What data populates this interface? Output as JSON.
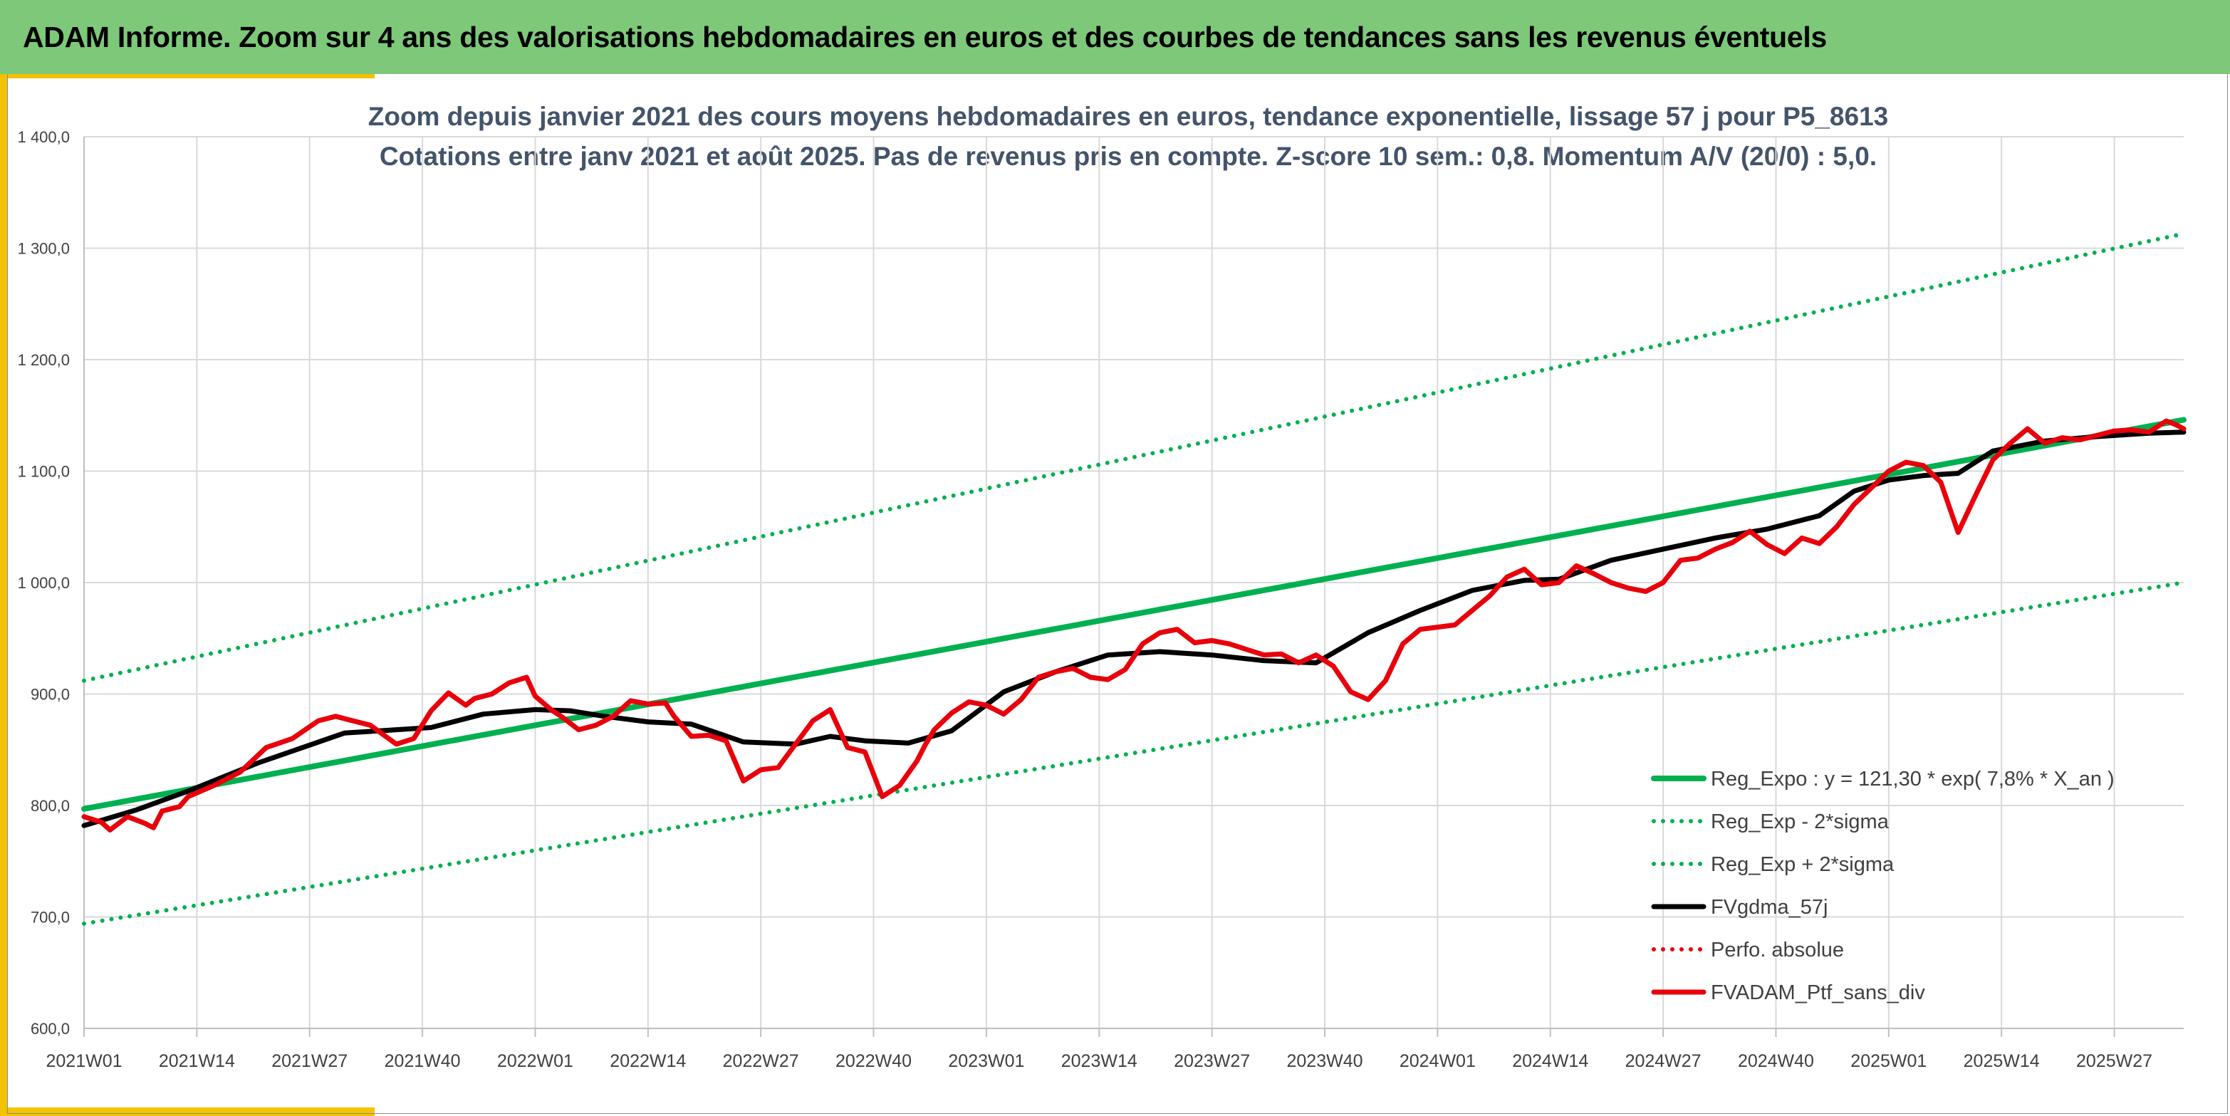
{
  "header": {
    "title": "ADAM Informe. Zoom sur 4 ans des valorisations hebdomadaires en euros et des courbes de tendances sans les revenus éventuels"
  },
  "colors": {
    "header_bg": "#7ec87a",
    "accent": "#f3c300",
    "trend": "#00b050",
    "smooth": "#000000",
    "perf": "#e8000b"
  },
  "chart_data": {
    "type": "line",
    "title": "Zoom depuis janvier 2021 des cours moyens hebdomadaires en euros, tendance exponentielle, lissage 57 j pour P5_8613",
    "subtitle": "Cotations entre janv 2021 et août 2025. Pas de revenus pris en compte. Z-score 10 sem.: 0,8. Momentum A/V (20/0) : 5,0.",
    "xlabel": "",
    "ylabel": "",
    "ylim": [
      600,
      1400
    ],
    "yticks": [
      "600,0",
      "700,0",
      "800,0",
      "900,0",
      "1 000,0",
      "1 100,0",
      "1 200,0",
      "1 300,0",
      "1 400,0"
    ],
    "x_ticks": [
      "2021W01",
      "2021W14",
      "2021W27",
      "2021W40",
      "2022W01",
      "2022W14",
      "2022W27",
      "2022W40",
      "2023W01",
      "2023W14",
      "2023W27",
      "2023W40",
      "2024W01",
      "2024W14",
      "2024W27",
      "2024W40",
      "2025W01",
      "2025W14",
      "2025W27"
    ],
    "grid": true,
    "legend_position": "bottom-right",
    "x_unit": "week index since 2021W01",
    "series": [
      {
        "name": "Reg_Expo : y = 121,30 * exp( 7,8% *  X_an )",
        "style": "solid-thick",
        "color": "#00b050",
        "x": [
          0,
          242
        ],
        "y": [
          797,
          1146
        ]
      },
      {
        "name": "Reg_Exp - 2*sigma",
        "style": "dotted",
        "color": "#00b050",
        "x": [
          0,
          242
        ],
        "y": [
          694,
          1000
        ]
      },
      {
        "name": "Reg_Exp + 2*sigma",
        "style": "dotted",
        "color": "#00b050",
        "x": [
          0,
          242
        ],
        "y": [
          912,
          1313
        ]
      },
      {
        "name": "FVgdma_57j",
        "style": "solid",
        "color": "#000000",
        "x": [
          0,
          6,
          12,
          20,
          30,
          40,
          46,
          52,
          56,
          60,
          65,
          70,
          76,
          82,
          86,
          90,
          95,
          100,
          106,
          112,
          118,
          124,
          130,
          136,
          142,
          148,
          154,
          160,
          166,
          170,
          176,
          182,
          188,
          194,
          200,
          204,
          208,
          212,
          216,
          220,
          226,
          232,
          238,
          242
        ],
        "y": [
          782,
          796,
          813,
          838,
          865,
          870,
          882,
          886,
          885,
          880,
          875,
          873,
          857,
          855,
          862,
          858,
          856,
          867,
          902,
          920,
          935,
          938,
          935,
          930,
          928,
          955,
          975,
          993,
          1002,
          1003,
          1020,
          1030,
          1040,
          1048,
          1060,
          1082,
          1092,
          1096,
          1098,
          1118,
          1127,
          1131,
          1134,
          1135
        ]
      },
      {
        "name": "Perfo. absolue",
        "style": "dotted",
        "color": "#e8000b",
        "x": [],
        "y": []
      },
      {
        "name": "FVADAM_Ptf_sans_div",
        "style": "solid",
        "color": "#e8000b",
        "x": [
          0,
          2,
          3,
          5,
          7,
          8,
          9,
          11,
          12,
          15,
          18,
          21,
          24,
          27,
          29,
          31,
          33,
          36,
          38,
          40,
          42,
          44,
          45,
          47,
          49,
          51,
          52,
          54,
          55,
          57,
          59,
          61,
          63,
          65,
          67,
          68,
          70,
          72,
          74,
          76,
          78,
          80,
          82,
          84,
          86,
          88,
          90,
          92,
          94,
          96,
          97,
          98,
          100,
          102,
          104,
          106,
          108,
          110,
          112,
          114,
          116,
          118,
          120,
          122,
          124,
          126,
          128,
          130,
          132,
          134,
          136,
          138,
          140,
          142,
          144,
          146,
          148,
          150,
          152,
          154,
          156,
          158,
          160,
          162,
          164,
          166,
          168,
          170,
          172,
          174,
          176,
          178,
          180,
          182,
          184,
          186,
          188,
          190,
          192,
          194,
          196,
          198,
          200,
          202,
          204,
          206,
          208,
          210,
          212,
          214,
          216,
          218,
          220,
          222,
          224,
          226,
          228,
          230,
          232,
          234,
          236,
          238,
          240,
          241,
          242
        ],
        "y": [
          790,
          785,
          778,
          790,
          784,
          780,
          795,
          799,
          808,
          818,
          830,
          852,
          860,
          876,
          880,
          876,
          872,
          855,
          860,
          885,
          901,
          890,
          896,
          900,
          910,
          915,
          898,
          885,
          880,
          868,
          872,
          880,
          894,
          891,
          892,
          880,
          862,
          863,
          858,
          822,
          832,
          834,
          855,
          876,
          886,
          852,
          848,
          808,
          818,
          840,
          855,
          868,
          883,
          893,
          890,
          882,
          895,
          915,
          920,
          923,
          915,
          913,
          922,
          945,
          955,
          958,
          946,
          948,
          945,
          940,
          935,
          936,
          928,
          935,
          925,
          902,
          895,
          912,
          945,
          958,
          960,
          962,
          975,
          988,
          1005,
          1012,
          998,
          1000,
          1015,
          1008,
          1000,
          995,
          992,
          1000,
          1020,
          1022,
          1030,
          1036,
          1046,
          1034,
          1026,
          1040,
          1035,
          1050,
          1070,
          1085,
          1100,
          1108,
          1105,
          1090,
          1045,
          1078,
          1110,
          1125,
          1138,
          1125,
          1130,
          1128,
          1132,
          1136,
          1137,
          1135,
          1145,
          1142,
          1138
        ]
      }
    ]
  }
}
